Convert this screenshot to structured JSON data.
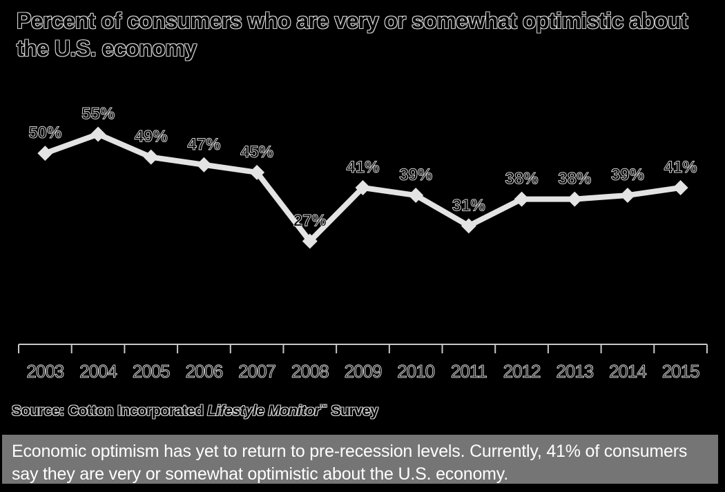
{
  "title": "Percent of consumers who are very or somewhat optimistic about the U.S. economy",
  "source": {
    "prefix": "Source: Cotton Incorporated ",
    "italic": "Lifestyle Monitor",
    "tm": "™",
    "suffix": " Survey"
  },
  "caption": "Economic optimism has yet to return to pre-recession levels.  Currently, 41% of consumers say they are very or somewhat optimistic about the U.S. economy.",
  "colors": {
    "background": "#000000",
    "line": "#e3e3e3",
    "marker": "#e3e3e3",
    "axis": "#c9c9c9",
    "text_outline": "#d6d6d6",
    "caption_bg": "#757575",
    "caption_text": "#ffffff"
  },
  "chart_data": {
    "type": "line",
    "title": "Percent of consumers who are very or somewhat optimistic about the U.S. economy",
    "categories": [
      "2003",
      "2004",
      "2005",
      "2006",
      "2007",
      "2008",
      "2009",
      "2010",
      "2011",
      "2012",
      "2013",
      "2014",
      "2015"
    ],
    "values": [
      50,
      55,
      49,
      47,
      45,
      27,
      41,
      39,
      31,
      38,
      38,
      39,
      41
    ],
    "point_labels": [
      "50%",
      "55%",
      "49%",
      "47%",
      "45%",
      "27%",
      "41%",
      "39%",
      "31%",
      "38%",
      "38%",
      "39%",
      "41%"
    ],
    "xlabel": "",
    "ylabel": "",
    "ylim": [
      0,
      60
    ],
    "grid": false,
    "legend": false,
    "marker": "diamond",
    "source_text": "Source: Cotton Incorporated Lifestyle Monitor™ Survey"
  }
}
